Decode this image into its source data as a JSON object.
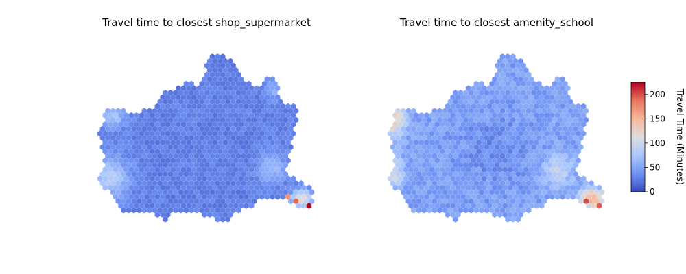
{
  "charts": [
    {
      "id": "left",
      "title": "Travel time to closest shop_supermarket"
    },
    {
      "id": "right",
      "title": "Travel time to closest amenity_school"
    }
  ],
  "chart_data": [
    {
      "type": "heatmap",
      "subtype": "hexbin-map",
      "title": "Travel time to closest shop_supermarket",
      "axes_visible": false,
      "value_range": [
        0,
        225
      ],
      "colormap": "coolwarm",
      "description_of_values": "Mostly 0–40 min across the region; lighter 50–90 min near the western and eastern edges; 110–225 min in the south-east corner (max ≈ 225)."
    },
    {
      "type": "heatmap",
      "subtype": "hexbin-map",
      "title": "Travel time to closest amenity_school",
      "axes_visible": false,
      "value_range": [
        0,
        225
      ],
      "colormap": "coolwarm",
      "description_of_values": "Mostly 20–60 min; 100–150 min along the far west; 120–200 min in the south-east corner (max ≈ 200)."
    }
  ],
  "colorbar": {
    "label": "Travel Time (Minutes)",
    "min": 0,
    "max": 225,
    "ticks": [
      "0",
      "50",
      "100",
      "150",
      "200"
    ],
    "tick_values": [
      0,
      50,
      100,
      150,
      200
    ],
    "colormap": "coolwarm",
    "colors": [
      "#3b4cc0",
      "#6f92f3",
      "#aac7fd",
      "#dddddd",
      "#f7b89c",
      "#e7745b",
      "#b40426"
    ]
  }
}
